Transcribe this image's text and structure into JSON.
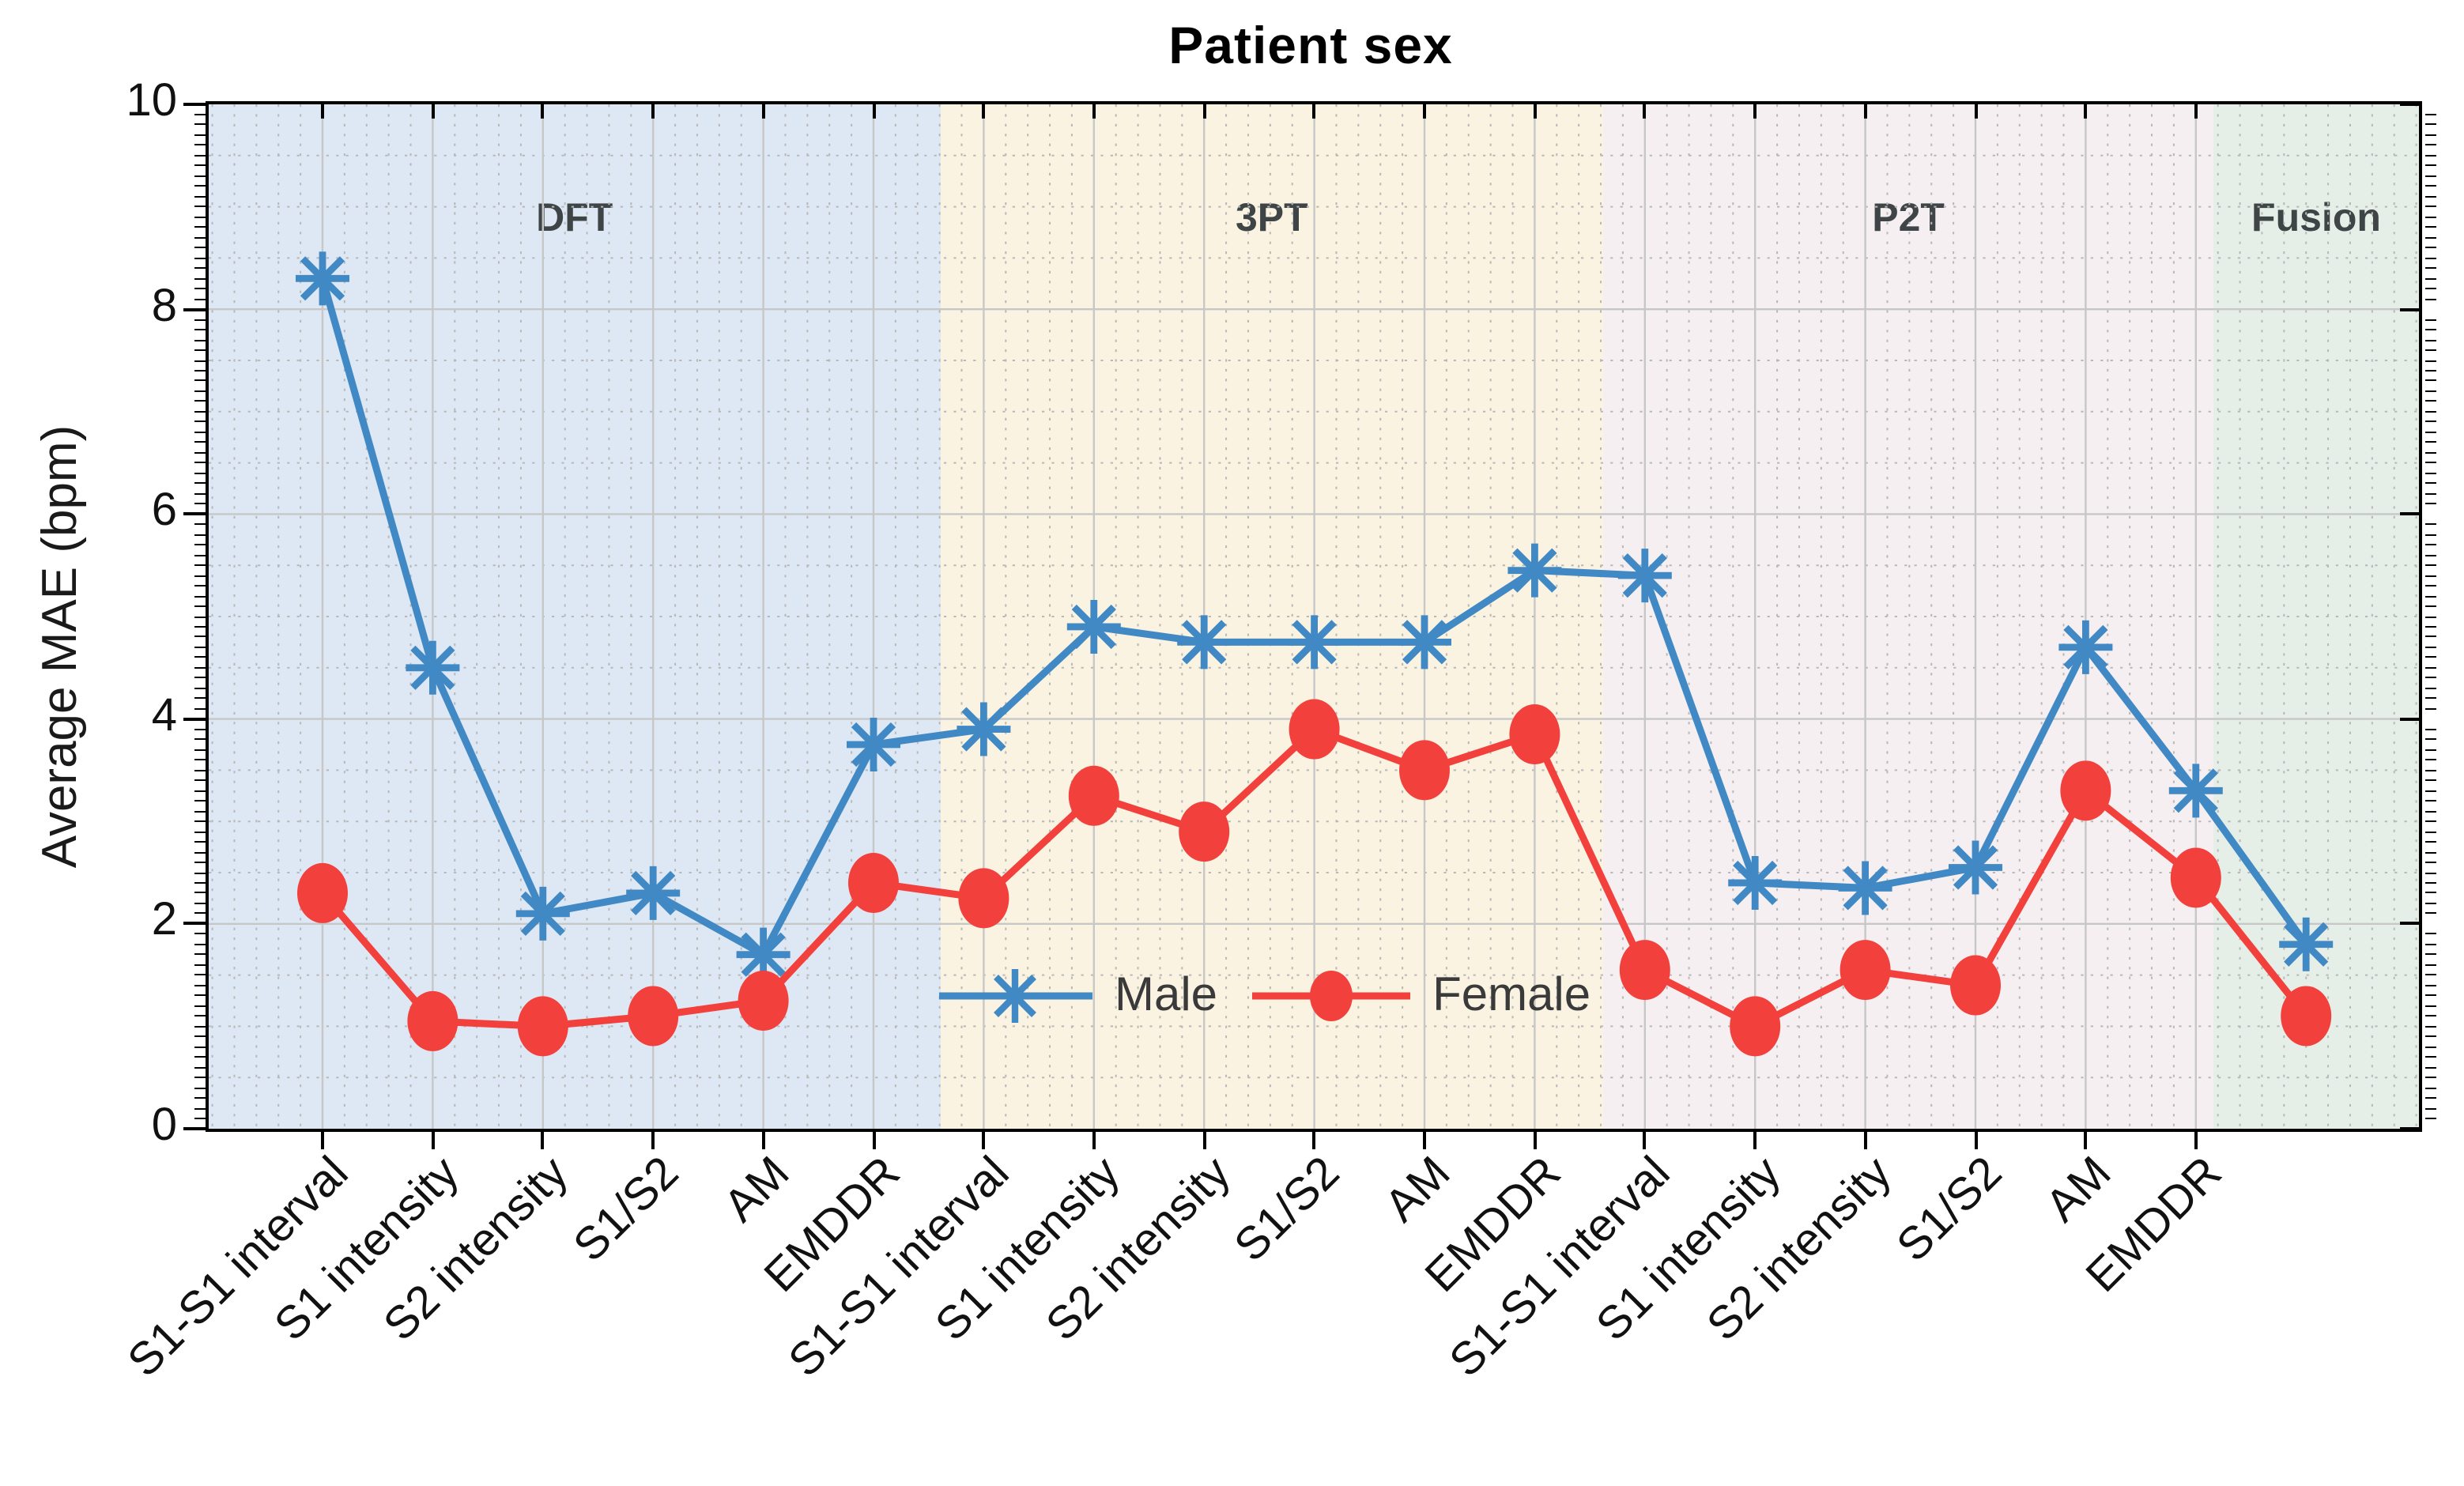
{
  "chart_data": {
    "type": "line",
    "title": "Patient sex",
    "ylabel": "Average MAE (bpm)",
    "xlabel": "",
    "ylim": [
      0,
      10
    ],
    "yticks": [
      0,
      2,
      4,
      6,
      8,
      10
    ],
    "y_minor_step": 0.5,
    "grid": "major solid gray + dotted minor mesh, minor x grid at 1/5 category spacing",
    "categories": [
      "S1-S1 interval",
      "S1 intensity",
      "S2 intensity",
      "S1/S2",
      "AM",
      "EMDDR",
      "S1-S1 interval",
      "S1 intensity",
      "S2 intensity",
      "S1/S2",
      "AM",
      "EMDDR",
      "S1-S1 interval",
      "S1 intensity",
      "S2 intensity",
      "S1/S2",
      "AM",
      "EMDDR",
      ""
    ],
    "groups": [
      {
        "label": "DFT",
        "color": "#dde8f4",
        "start_index": 0,
        "end_index": 5
      },
      {
        "label": "3PT",
        "color": "#faf3e1",
        "start_index": 6,
        "end_index": 11
      },
      {
        "label": "P2T",
        "color": "#f5eff1",
        "start_index": 12,
        "end_index": 17
      },
      {
        "label": "Fusion",
        "color": "#e6efe7",
        "start_index": 18,
        "end_index": 18
      }
    ],
    "band_boundaries_fraction": [
      0.331,
      0.631,
      0.907
    ],
    "series": [
      {
        "name": "Male",
        "color": "#4189c4",
        "marker": "asterisk",
        "values": [
          8.3,
          4.5,
          2.1,
          2.3,
          1.7,
          3.75,
          3.9,
          4.9,
          4.75,
          4.75,
          4.75,
          5.45,
          5.4,
          2.4,
          2.35,
          2.55,
          4.7,
          3.3,
          1.8
        ]
      },
      {
        "name": "Female",
        "color": "#f2403c",
        "marker": "circle",
        "values": [
          2.3,
          1.05,
          1.0,
          1.1,
          1.25,
          2.4,
          2.25,
          3.25,
          2.9,
          3.9,
          3.5,
          3.85,
          1.55,
          1.0,
          1.55,
          1.4,
          3.3,
          2.45,
          1.1
        ]
      }
    ],
    "legend": {
      "items": [
        "Male",
        "Female"
      ],
      "position": "inside, lower-left area of 3PT band"
    },
    "colors": {
      "axis": "#000000",
      "grid_major": "#c7c7c7",
      "grid_minor": "#b8b8b8",
      "group_label": "#3f4447",
      "title": "#000000"
    }
  }
}
